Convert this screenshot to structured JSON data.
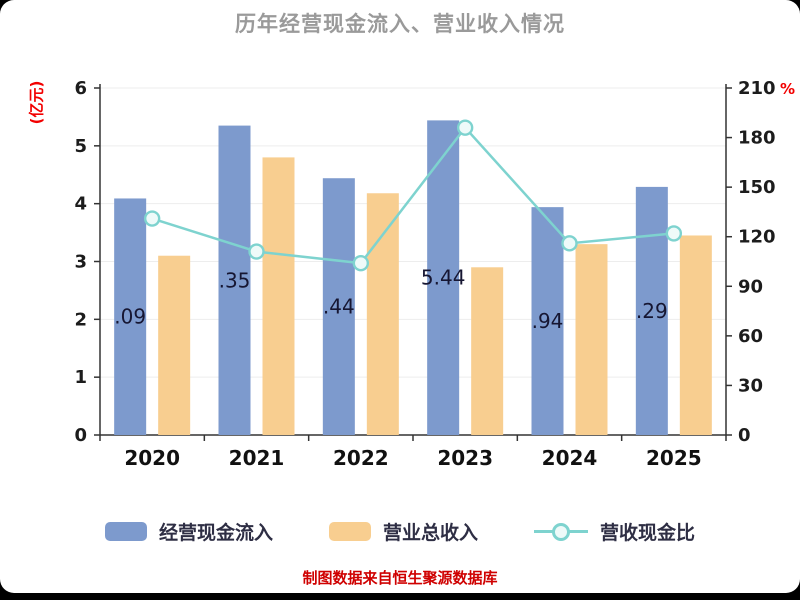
{
  "title": "历年经营现金流入、营业收入情况",
  "footer": "制图数据来自恒生聚源数据库",
  "axes": {
    "left_unit": "(亿元)",
    "right_unit": "%",
    "left_ticks": [
      0,
      1,
      2,
      3,
      4,
      5,
      6
    ],
    "right_ticks": [
      0,
      30,
      60,
      90,
      120,
      150,
      180,
      210
    ]
  },
  "legend": [
    {
      "label": "经营现金流入",
      "type": "bar",
      "color": "#7d9acd"
    },
    {
      "label": "营业总收入",
      "type": "bar",
      "color": "#f8ce90"
    },
    {
      "label": "营收现金比",
      "type": "line",
      "color": "#7ed3cf"
    }
  ],
  "colors": {
    "bar_cash": "#7d9acd",
    "bar_revenue": "#f8ce90",
    "line_ratio": "#7ed3cf",
    "marker_fill": "#eefaf9",
    "title_gray": "#9a9a9a",
    "axis_unit_red": "#f20000",
    "footer_red": "#cf0000",
    "tick_text": "#1c1c1c",
    "bar_label_text": "#161632",
    "grid": "#ededed",
    "axis_line": "#333333"
  },
  "chart_data": {
    "type": "bar",
    "subtype": "grouped-bars-with-line",
    "title": "历年经营现金流入、营业收入情况",
    "categories": [
      "2020",
      "2021",
      "2022",
      "2023",
      "2024",
      "2025"
    ],
    "series": [
      {
        "name": "经营现金流入",
        "type": "bar",
        "axis": "left",
        "color": "#7d9acd",
        "values": [
          4.09,
          5.35,
          4.44,
          5.44,
          3.94,
          4.29
        ],
        "visible_labels": [
          ".09",
          ".35",
          ".44",
          "5.44",
          ".94",
          ".29"
        ]
      },
      {
        "name": "营业总收入",
        "type": "bar",
        "axis": "left",
        "color": "#f8ce90",
        "values": [
          3.1,
          4.8,
          4.18,
          2.9,
          3.3,
          3.45
        ]
      },
      {
        "name": "营收现金比",
        "type": "line",
        "axis": "right",
        "color": "#7ed3cf",
        "values": [
          131,
          111,
          104,
          186,
          116,
          122
        ]
      }
    ],
    "left_axis": {
      "label": "(亿元)",
      "range": [
        0,
        6
      ]
    },
    "right_axis": {
      "label": "%",
      "range": [
        0,
        210
      ]
    },
    "grid": true,
    "legend_position": "bottom"
  }
}
